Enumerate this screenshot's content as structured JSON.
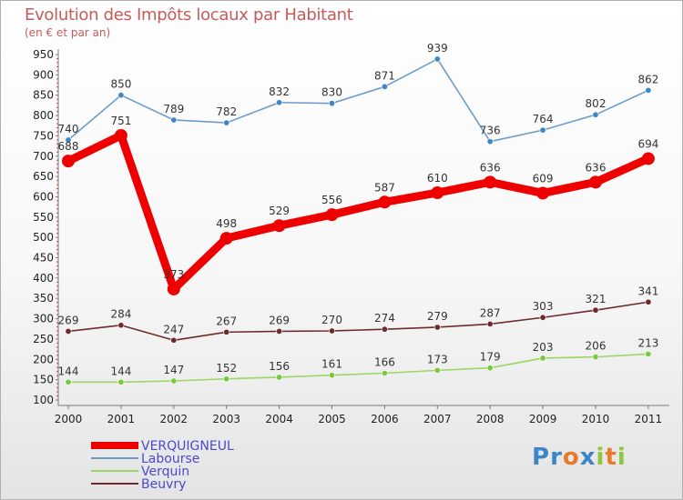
{
  "header": {
    "title": "Evolution des Impôts locaux par Habitant",
    "subtitle": "(en € et par an)"
  },
  "logo": {
    "letters": [
      "P",
      "r",
      "o",
      "x",
      "i",
      "t",
      "i"
    ]
  },
  "chart_data": {
    "type": "line",
    "title": "Evolution des Impôts locaux par Habitant",
    "subtitle": "(en € et par an)",
    "xlabel": "",
    "ylabel": "",
    "x": [
      "2000",
      "2001",
      "2002",
      "2003",
      "2004",
      "2005",
      "2006",
      "2007",
      "2008",
      "2009",
      "2010",
      "2011"
    ],
    "ylim": [
      100,
      950
    ],
    "yticks": [
      100,
      150,
      200,
      250,
      300,
      350,
      400,
      450,
      500,
      550,
      600,
      650,
      700,
      750,
      800,
      850,
      900,
      950
    ],
    "grid": false,
    "legend_position": "bottom-left",
    "series": [
      {
        "name": "VERQUIGNEUL",
        "color": "#ee0000",
        "emphasis": true,
        "values": [
          688,
          751,
          373,
          498,
          529,
          556,
          587,
          610,
          636,
          609,
          636,
          694
        ]
      },
      {
        "name": "Labourse",
        "color": "#6e9cc8",
        "values": [
          740,
          850,
          789,
          782,
          832,
          830,
          871,
          939,
          736,
          764,
          802,
          862
        ]
      },
      {
        "name": "Verquin",
        "color": "#9ad765",
        "values": [
          144,
          144,
          147,
          152,
          156,
          161,
          166,
          173,
          179,
          203,
          206,
          213
        ]
      },
      {
        "name": "Beuvry",
        "color": "#6e2b2b",
        "values": [
          269,
          284,
          247,
          267,
          269,
          270,
          274,
          279,
          287,
          303,
          321,
          341
        ]
      }
    ],
    "marker_colors": {
      "VERQUIGNEUL": "#ee0000",
      "Labourse": "#3f86c4",
      "Verquin": "#79c93c",
      "Beuvry": "#6e2b2b"
    },
    "logo_colors": [
      "#3d86c6",
      "#3d86c6",
      "#e77b2a",
      "#3d86c6",
      "#8dc63f",
      "#e77b2a",
      "#8dc63f"
    ]
  }
}
